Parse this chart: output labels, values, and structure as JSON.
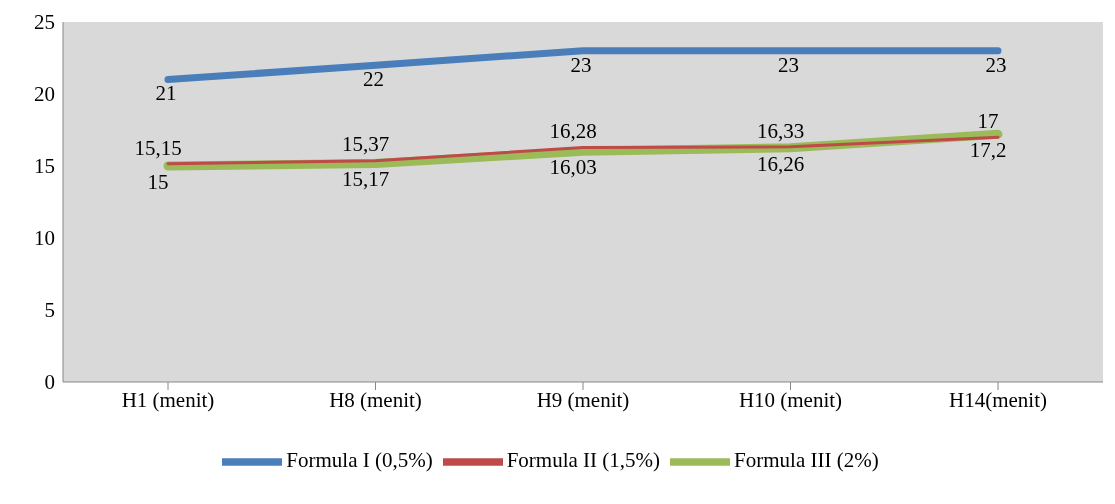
{
  "chart_data": {
    "type": "line",
    "categories": [
      "H1 (menit)",
      "H8 (menit)",
      "H9 (menit)",
      "H10 (menit)",
      "H14(menit)"
    ],
    "series": [
      {
        "name": "Formula I (0,5%)",
        "color": "#4a7ebb",
        "values": [
          21,
          22,
          23,
          23,
          23
        ],
        "value_labels": [
          "21",
          "22",
          "23",
          "23",
          "23"
        ]
      },
      {
        "name": "Formula II (1,5%)",
        "color": "#be4b48",
        "values": [
          15.15,
          15.37,
          16.28,
          16.33,
          17
        ],
        "value_labels": [
          "15,15",
          "15,37",
          "16,28",
          "16,33",
          "17"
        ]
      },
      {
        "name": "Formula III (2%)",
        "color": "#9bbb59",
        "values": [
          15,
          15.17,
          16.03,
          16.26,
          17.2
        ],
        "value_labels": [
          "15",
          "15,17",
          "16,03",
          "16,26",
          "17,2"
        ]
      }
    ],
    "ylim": [
      0,
      25
    ],
    "yticks": [
      0,
      5,
      10,
      15,
      20,
      25
    ],
    "grid": false,
    "legend": "bottom",
    "marker": "none",
    "line_style": "solid"
  }
}
